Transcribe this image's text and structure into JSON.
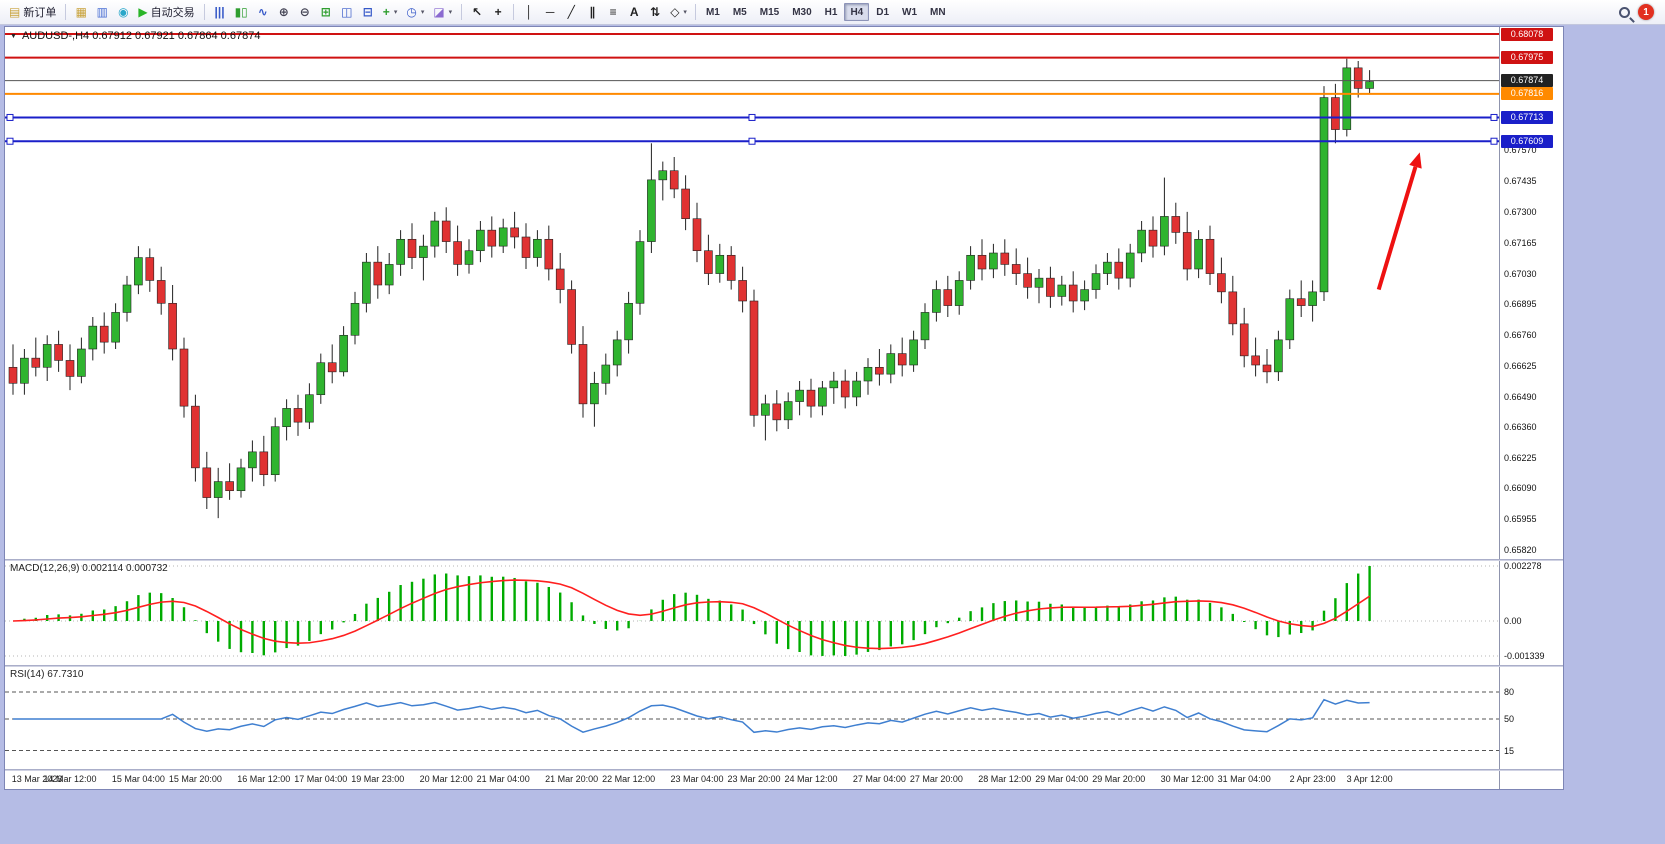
{
  "toolbar": {
    "items": [
      {
        "type": "button",
        "name": "new-order-button",
        "glyph": "▤",
        "glyph_color": "#c8a23a",
        "label": "新订单"
      },
      {
        "type": "sep"
      },
      {
        "type": "icon",
        "name": "new-chart-button",
        "glyph": "▦",
        "glyph_color": "#c8a23a"
      },
      {
        "type": "icon",
        "name": "profiles-button",
        "glyph": "▥",
        "glyph_color": "#4a6fd4"
      },
      {
        "type": "icon",
        "name": "data-window-button",
        "glyph": "◉",
        "glyph_color": "#2aa7c9"
      },
      {
        "type": "button",
        "name": "auto-trading-button",
        "glyph": "▶",
        "glyph_color": "#28b428",
        "label": "自动交易"
      },
      {
        "type": "sep"
      },
      {
        "type": "icon",
        "name": "bar-chart-button",
        "glyph": "|||",
        "glyph_color": "#3558c8"
      },
      {
        "type": "icon",
        "name": "candlestick-chart-button",
        "glyph": "▮▯",
        "glyph_color": "#2f9e2f"
      },
      {
        "type": "icon",
        "name": "line-chart-button",
        "glyph": "∿",
        "glyph_color": "#3558c8"
      },
      {
        "type": "icon",
        "name": "zoom-in-button",
        "glyph": "⊕",
        "glyph_color": "#445"
      },
      {
        "type": "icon",
        "name": "zoom-out-button",
        "glyph": "⊖",
        "glyph_color": "#445"
      },
      {
        "type": "icon",
        "name": "tile-windows-button",
        "glyph": "⊞",
        "glyph_color": "#2f9e2f"
      },
      {
        "type": "icon",
        "name": "cascade-windows-button",
        "glyph": "◫",
        "glyph_color": "#3558c8"
      },
      {
        "type": "icon",
        "name": "arrange-windows-button",
        "glyph": "⊟",
        "glyph_color": "#3558c8"
      },
      {
        "type": "dropdown",
        "name": "indicators-button",
        "glyph": "+",
        "glyph_color": "#2f9e2f"
      },
      {
        "type": "dropdown",
        "name": "periods-button",
        "glyph": "◷",
        "glyph_color": "#3558c8"
      },
      {
        "type": "dropdown",
        "name": "templates-button",
        "glyph": "◪",
        "glyph_color": "#8a6ad0"
      },
      {
        "type": "sep"
      },
      {
        "type": "icon",
        "name": "cursor-button",
        "glyph": "↖",
        "glyph_color": "#222"
      },
      {
        "type": "icon",
        "name": "crosshair-button",
        "glyph": "+",
        "glyph_color": "#222"
      },
      {
        "type": "sep"
      },
      {
        "type": "icon",
        "name": "vertical-line-button",
        "glyph": "│",
        "glyph_color": "#222"
      },
      {
        "type": "icon",
        "name": "horizontal-line-button",
        "glyph": "─",
        "glyph_color": "#222"
      },
      {
        "type": "icon",
        "name": "trendline-button",
        "glyph": "╱",
        "glyph_color": "#222"
      },
      {
        "type": "icon",
        "name": "channel-button",
        "glyph": "∥",
        "glyph_color": "#222"
      },
      {
        "type": "icon",
        "name": "fibonacci-button",
        "glyph": "≡",
        "glyph_color": "#222"
      },
      {
        "type": "icon",
        "name": "text-button",
        "glyph": "A",
        "glyph_color": "#222"
      },
      {
        "type": "icon",
        "name": "arrows-button",
        "glyph": "⇅",
        "glyph_color": "#222"
      },
      {
        "type": "dropdown",
        "name": "shapes-button",
        "glyph": "◇",
        "glyph_color": "#222"
      }
    ],
    "timeframes": [
      "M1",
      "M5",
      "M15",
      "M30",
      "H1",
      "H4",
      "D1",
      "W1",
      "MN"
    ],
    "active_timeframe": "H4",
    "notification_badge": "1"
  },
  "chart": {
    "header_text": "AUDUSD-,H4  0.67912 0.67921 0.67864 0.67874",
    "symbol": "AUDUSD-",
    "timeframe": "H4",
    "ohlc": {
      "open": "0.67912",
      "high": "0.67921",
      "low": "0.67864",
      "close": "0.67874"
    },
    "current_price": "0.67874",
    "current_price_color": "#222222",
    "levels": [
      {
        "price": "0.68078",
        "color": "#cf1212",
        "width": 2,
        "handles": false
      },
      {
        "price": "0.67975",
        "color": "#cf1212",
        "width": 2,
        "handles": false
      },
      {
        "price": "0.67816",
        "color": "#ff8a00",
        "width": 2,
        "handles": false
      },
      {
        "price": "0.67713",
        "color": "#1a1fc9",
        "width": 2,
        "handles": true
      },
      {
        "price": "0.67609",
        "color": "#1a1fc9",
        "width": 2,
        "handles": true
      }
    ],
    "price_axis_ticks": [
      "0.67570",
      "0.67435",
      "0.67300",
      "0.67165",
      "0.67030",
      "0.66895",
      "0.66760",
      "0.66625",
      "0.66490",
      "0.66360",
      "0.66225",
      "0.66090",
      "0.65955",
      "0.65820"
    ]
  },
  "macd": {
    "label": "MACD(12,26,9) 0.002114 0.000732",
    "value": "0.002114",
    "signal_value": "0.000732",
    "axis_max": "0.002278",
    "axis_zero": "0.00",
    "axis_min": "-0.001339",
    "histogram_color": "#00ab00",
    "signal_color": "#ff1f1f"
  },
  "rsi": {
    "label": "RSI(14) 67.7310",
    "value": "67.7310",
    "levels": [
      "80",
      "50",
      "15"
    ],
    "line_color": "#3f7fd0"
  },
  "time_axis": {
    "labels": [
      "13 Mar 2023",
      "14 Mar 12:00",
      "15 Mar 04:00",
      "15 Mar 20:00",
      "16 Mar 12:00",
      "17 Mar 04:00",
      "19 Mar 23:00",
      "20 Mar 12:00",
      "21 Mar 04:00",
      "21 Mar 20:00",
      "22 Mar 12:00",
      "23 Mar 04:00",
      "23 Mar 20:00",
      "24 Mar 12:00",
      "27 Mar 04:00",
      "27 Mar 20:00",
      "28 Mar 12:00",
      "29 Mar 04:00",
      "29 Mar 20:00",
      "30 Mar 12:00",
      "31 Mar 04:00",
      "2 Apr 23:00",
      "3 Apr 12:00"
    ]
  },
  "chart_data": {
    "type": "candlestick",
    "title": "AUDUSD- H4",
    "ylim": [
      0.6579,
      0.681
    ],
    "up_color": "#2fb42f",
    "down_color": "#e03232",
    "candles": [
      [
        0.6662,
        0.6672,
        0.665,
        0.6655
      ],
      [
        0.6655,
        0.667,
        0.665,
        0.6666
      ],
      [
        0.6666,
        0.6675,
        0.6658,
        0.6662
      ],
      [
        0.6662,
        0.6676,
        0.6656,
        0.6672
      ],
      [
        0.6672,
        0.6678,
        0.666,
        0.6665
      ],
      [
        0.6665,
        0.6672,
        0.6652,
        0.6658
      ],
      [
        0.6658,
        0.6675,
        0.6655,
        0.667
      ],
      [
        0.667,
        0.6684,
        0.6665,
        0.668
      ],
      [
        0.668,
        0.6686,
        0.6668,
        0.6673
      ],
      [
        0.6673,
        0.669,
        0.667,
        0.6686
      ],
      [
        0.6686,
        0.6702,
        0.6682,
        0.6698
      ],
      [
        0.6698,
        0.6715,
        0.6694,
        0.671
      ],
      [
        0.671,
        0.6714,
        0.6695,
        0.67
      ],
      [
        0.67,
        0.6706,
        0.6685,
        0.669
      ],
      [
        0.669,
        0.6698,
        0.6665,
        0.667
      ],
      [
        0.667,
        0.6675,
        0.664,
        0.6645
      ],
      [
        0.6645,
        0.665,
        0.6612,
        0.6618
      ],
      [
        0.6618,
        0.6625,
        0.66,
        0.6605
      ],
      [
        0.6605,
        0.6618,
        0.6596,
        0.6612
      ],
      [
        0.6612,
        0.662,
        0.6604,
        0.6608
      ],
      [
        0.6608,
        0.6622,
        0.6605,
        0.6618
      ],
      [
        0.6618,
        0.663,
        0.6612,
        0.6625
      ],
      [
        0.6625,
        0.6632,
        0.661,
        0.6615
      ],
      [
        0.6615,
        0.664,
        0.6612,
        0.6636
      ],
      [
        0.6636,
        0.6648,
        0.663,
        0.6644
      ],
      [
        0.6644,
        0.665,
        0.6632,
        0.6638
      ],
      [
        0.6638,
        0.6655,
        0.6635,
        0.665
      ],
      [
        0.665,
        0.6668,
        0.6646,
        0.6664
      ],
      [
        0.6664,
        0.6672,
        0.6655,
        0.666
      ],
      [
        0.666,
        0.668,
        0.6658,
        0.6676
      ],
      [
        0.6676,
        0.6695,
        0.6672,
        0.669
      ],
      [
        0.669,
        0.6712,
        0.6686,
        0.6708
      ],
      [
        0.6708,
        0.6715,
        0.6692,
        0.6698
      ],
      [
        0.6698,
        0.6712,
        0.6694,
        0.6707
      ],
      [
        0.6707,
        0.6722,
        0.6702,
        0.6718
      ],
      [
        0.6718,
        0.6725,
        0.6705,
        0.671
      ],
      [
        0.671,
        0.672,
        0.67,
        0.6715
      ],
      [
        0.6715,
        0.673,
        0.671,
        0.6726
      ],
      [
        0.6726,
        0.6732,
        0.6712,
        0.6717
      ],
      [
        0.6717,
        0.6724,
        0.6702,
        0.6707
      ],
      [
        0.6707,
        0.6718,
        0.6703,
        0.6713
      ],
      [
        0.6713,
        0.6726,
        0.6708,
        0.6722
      ],
      [
        0.6722,
        0.6728,
        0.671,
        0.6715
      ],
      [
        0.6715,
        0.6727,
        0.6712,
        0.6723
      ],
      [
        0.6723,
        0.673,
        0.6714,
        0.6719
      ],
      [
        0.6719,
        0.6725,
        0.6705,
        0.671
      ],
      [
        0.671,
        0.6722,
        0.6706,
        0.6718
      ],
      [
        0.6718,
        0.6724,
        0.67,
        0.6705
      ],
      [
        0.6705,
        0.6712,
        0.669,
        0.6696
      ],
      [
        0.6696,
        0.67,
        0.6668,
        0.6672
      ],
      [
        0.6672,
        0.668,
        0.664,
        0.6646
      ],
      [
        0.6646,
        0.666,
        0.6636,
        0.6655
      ],
      [
        0.6655,
        0.6668,
        0.665,
        0.6663
      ],
      [
        0.6663,
        0.6678,
        0.6658,
        0.6674
      ],
      [
        0.6674,
        0.6695,
        0.6668,
        0.669
      ],
      [
        0.669,
        0.6722,
        0.6685,
        0.6717
      ],
      [
        0.6717,
        0.676,
        0.6712,
        0.6744
      ],
      [
        0.6744,
        0.6752,
        0.6735,
        0.6748
      ],
      [
        0.6748,
        0.6754,
        0.6736,
        0.674
      ],
      [
        0.674,
        0.6746,
        0.6722,
        0.6727
      ],
      [
        0.6727,
        0.6734,
        0.6708,
        0.6713
      ],
      [
        0.6713,
        0.672,
        0.6698,
        0.6703
      ],
      [
        0.6703,
        0.6716,
        0.6699,
        0.6711
      ],
      [
        0.6711,
        0.6715,
        0.6696,
        0.67
      ],
      [
        0.67,
        0.6706,
        0.6686,
        0.6691
      ],
      [
        0.6691,
        0.6696,
        0.6636,
        0.6641
      ],
      [
        0.6641,
        0.665,
        0.663,
        0.6646
      ],
      [
        0.6646,
        0.6652,
        0.6634,
        0.6639
      ],
      [
        0.6639,
        0.6651,
        0.6635,
        0.6647
      ],
      [
        0.6647,
        0.6656,
        0.6641,
        0.6652
      ],
      [
        0.6652,
        0.6657,
        0.664,
        0.6645
      ],
      [
        0.6645,
        0.6656,
        0.6641,
        0.6653
      ],
      [
        0.6653,
        0.666,
        0.6646,
        0.6656
      ],
      [
        0.6656,
        0.6661,
        0.6644,
        0.6649
      ],
      [
        0.6649,
        0.666,
        0.6645,
        0.6656
      ],
      [
        0.6656,
        0.6666,
        0.665,
        0.6662
      ],
      [
        0.6662,
        0.667,
        0.6654,
        0.6659
      ],
      [
        0.6659,
        0.6672,
        0.6655,
        0.6668
      ],
      [
        0.6668,
        0.6675,
        0.6658,
        0.6663
      ],
      [
        0.6663,
        0.6678,
        0.666,
        0.6674
      ],
      [
        0.6674,
        0.669,
        0.667,
        0.6686
      ],
      [
        0.6686,
        0.67,
        0.6682,
        0.6696
      ],
      [
        0.6696,
        0.6702,
        0.6684,
        0.6689
      ],
      [
        0.6689,
        0.6704,
        0.6685,
        0.67
      ],
      [
        0.67,
        0.6715,
        0.6696,
        0.6711
      ],
      [
        0.6711,
        0.6718,
        0.67,
        0.6705
      ],
      [
        0.6705,
        0.6716,
        0.6701,
        0.6712
      ],
      [
        0.6712,
        0.6718,
        0.6702,
        0.6707
      ],
      [
        0.6707,
        0.6714,
        0.6698,
        0.6703
      ],
      [
        0.6703,
        0.671,
        0.6692,
        0.6697
      ],
      [
        0.6697,
        0.6705,
        0.669,
        0.6701
      ],
      [
        0.6701,
        0.6706,
        0.6688,
        0.6693
      ],
      [
        0.6693,
        0.6702,
        0.6689,
        0.6698
      ],
      [
        0.6698,
        0.6704,
        0.6686,
        0.6691
      ],
      [
        0.6691,
        0.67,
        0.6687,
        0.6696
      ],
      [
        0.6696,
        0.6707,
        0.6692,
        0.6703
      ],
      [
        0.6703,
        0.6712,
        0.6698,
        0.6708
      ],
      [
        0.6708,
        0.6714,
        0.6696,
        0.6701
      ],
      [
        0.6701,
        0.6716,
        0.6697,
        0.6712
      ],
      [
        0.6712,
        0.6726,
        0.6708,
        0.6722
      ],
      [
        0.6722,
        0.6728,
        0.671,
        0.6715
      ],
      [
        0.6715,
        0.6745,
        0.6711,
        0.6728
      ],
      [
        0.6728,
        0.6734,
        0.6716,
        0.6721
      ],
      [
        0.6721,
        0.673,
        0.67,
        0.6705
      ],
      [
        0.6705,
        0.6722,
        0.6701,
        0.6718
      ],
      [
        0.6718,
        0.6724,
        0.6698,
        0.6703
      ],
      [
        0.6703,
        0.671,
        0.669,
        0.6695
      ],
      [
        0.6695,
        0.6702,
        0.6676,
        0.6681
      ],
      [
        0.6681,
        0.6688,
        0.6662,
        0.6667
      ],
      [
        0.6667,
        0.6675,
        0.6658,
        0.6663
      ],
      [
        0.6663,
        0.667,
        0.6655,
        0.666
      ],
      [
        0.666,
        0.6678,
        0.6656,
        0.6674
      ],
      [
        0.6674,
        0.6696,
        0.667,
        0.6692
      ],
      [
        0.6692,
        0.67,
        0.6684,
        0.6689
      ],
      [
        0.6689,
        0.67,
        0.6682,
        0.6695
      ],
      [
        0.6695,
        0.6785,
        0.6691,
        0.678
      ],
      [
        0.678,
        0.6786,
        0.676,
        0.6766
      ],
      [
        0.6766,
        0.6797,
        0.6763,
        0.6793
      ],
      [
        0.6793,
        0.6796,
        0.678,
        0.6784
      ],
      [
        0.6784,
        0.6792,
        0.6782,
        0.6787
      ]
    ],
    "annotations": [
      {
        "type": "arrow",
        "from": {
          "index": 119.8,
          "price": 0.6696
        },
        "to": {
          "index": 123.4,
          "price": 0.6756
        },
        "color": "#ee1111"
      }
    ]
  }
}
